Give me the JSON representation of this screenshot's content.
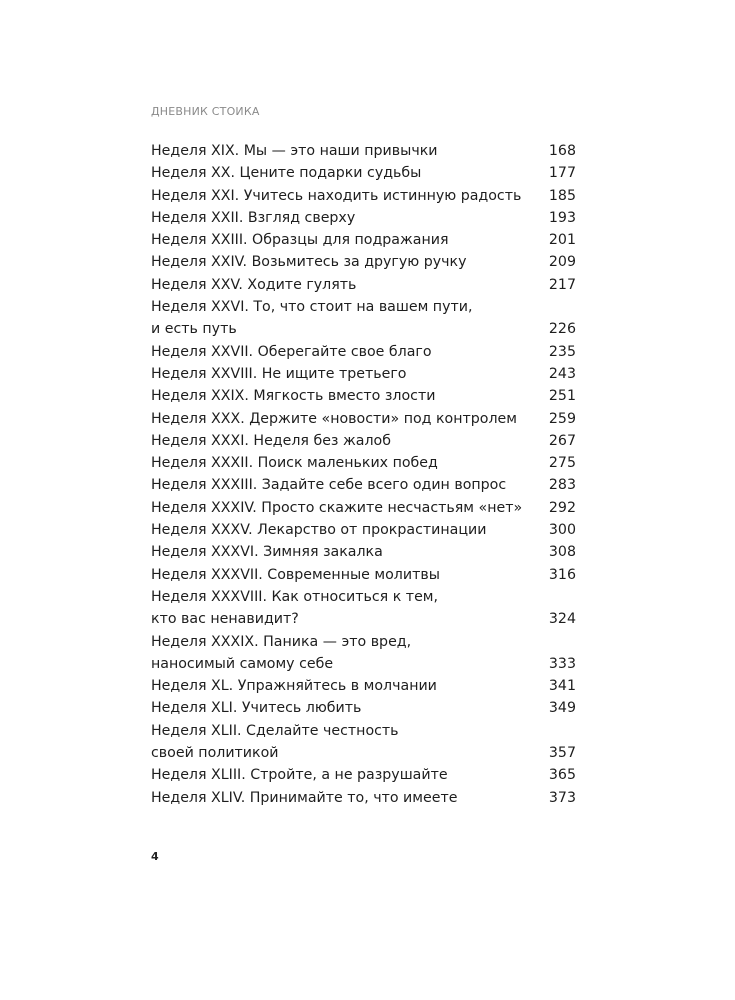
{
  "running_head": "ДНЕВНИК СТОИКА",
  "folio": "4",
  "toc": [
    {
      "lines": [
        "Неделя XIX. Мы — это наши привычки"
      ],
      "page": "168"
    },
    {
      "lines": [
        "Неделя XX. Цените подарки судьбы"
      ],
      "page": "177"
    },
    {
      "lines": [
        "Неделя XXI. Учитесь находить истинную радость"
      ],
      "page": "185"
    },
    {
      "lines": [
        "Неделя XXII. Взгляд сверху"
      ],
      "page": "193"
    },
    {
      "lines": [
        "Неделя XXIII. Образцы для подражания"
      ],
      "page": "201"
    },
    {
      "lines": [
        "Неделя XXIV. Возьмитесь за другую ручку"
      ],
      "page": "209"
    },
    {
      "lines": [
        "Неделя XXV. Ходите гулять"
      ],
      "page": "217"
    },
    {
      "lines": [
        "Неделя XXVI. То, что стоит на вашем пути,",
        "и есть путь"
      ],
      "page": "226"
    },
    {
      "lines": [
        "Неделя XXVII. Оберегайте свое благо"
      ],
      "page": "235"
    },
    {
      "lines": [
        "Неделя XXVIII. Не ищите третьего"
      ],
      "page": "243"
    },
    {
      "lines": [
        "Неделя XXIX. Мягкость вместо злости"
      ],
      "page": "251"
    },
    {
      "lines": [
        "Неделя XXX. Держите «новости» под контролем"
      ],
      "page": "259"
    },
    {
      "lines": [
        "Неделя XXXI. Неделя без жалоб"
      ],
      "page": "267"
    },
    {
      "lines": [
        "Неделя XXXII. Поиск маленьких побед"
      ],
      "page": "275"
    },
    {
      "lines": [
        "Неделя XXXIII. Задайте себе всего один вопрос"
      ],
      "page": "283"
    },
    {
      "lines": [
        "Неделя XXXIV. Просто скажите несчастьям «нет»"
      ],
      "page": "292"
    },
    {
      "lines": [
        "Неделя XXXV. Лекарство от прокрастинации"
      ],
      "page": "300"
    },
    {
      "lines": [
        "Неделя XXXVI. Зимняя закалка"
      ],
      "page": "308"
    },
    {
      "lines": [
        "Неделя XXXVII. Современные молитвы"
      ],
      "page": "316"
    },
    {
      "lines": [
        "Неделя XXXVIII. Как относиться к тем,",
        "кто вас ненавидит?"
      ],
      "page": "324"
    },
    {
      "lines": [
        "Неделя XXXIX. Паника — это вред,",
        "наносимый самому себе"
      ],
      "page": "333"
    },
    {
      "lines": [
        "Неделя XL. Упражняйтесь в молчании"
      ],
      "page": "341"
    },
    {
      "lines": [
        "Неделя XLI. Учитесь любить"
      ],
      "page": "349"
    },
    {
      "lines": [
        "Неделя XLII. Сделайте честность",
        "своей политикой"
      ],
      "page": "357"
    },
    {
      "lines": [
        "Неделя XLIII. Стройте, а не разрушайте"
      ],
      "page": "365"
    },
    {
      "lines": [
        "Неделя XLIV. Принимайте то, что имеете"
      ],
      "page": "373"
    }
  ]
}
